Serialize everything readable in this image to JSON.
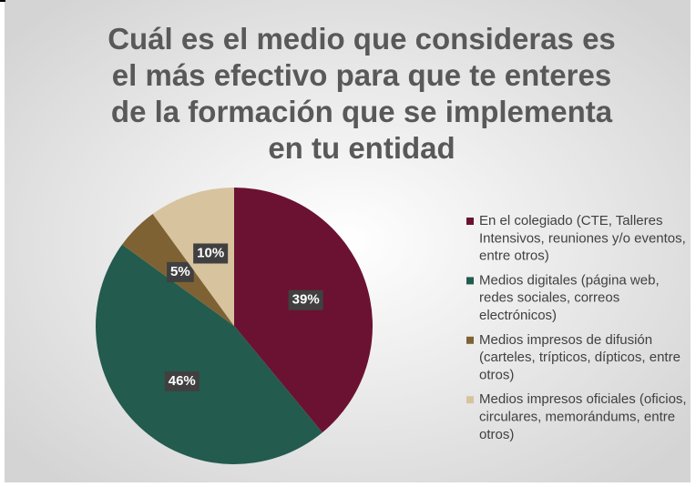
{
  "chart_data": {
    "type": "pie",
    "title": "Cuál es el medio que consideras es el más efectivo para que te enteres de la formación que se implementa en tu entidad",
    "categories": [
      "En el colegiado (CTE, Talleres Intensivos, reuniones y/o eventos, entre otros)",
      "Medios digitales (página web, redes sociales, correos electrónicos)",
      "Medios impresos de difusión (carteles, trípticos, dípticos, entre otros)",
      "Medios impresos oficiales (oficios, circulares, memorándums, entre otros)"
    ],
    "values": [
      39,
      46,
      5,
      10
    ],
    "value_labels": [
      "39%",
      "46%",
      "5%",
      "10%"
    ],
    "colors": [
      "#6b1232",
      "#235b4e",
      "#7f6234",
      "#d8c39f"
    ],
    "legend": "right"
  }
}
